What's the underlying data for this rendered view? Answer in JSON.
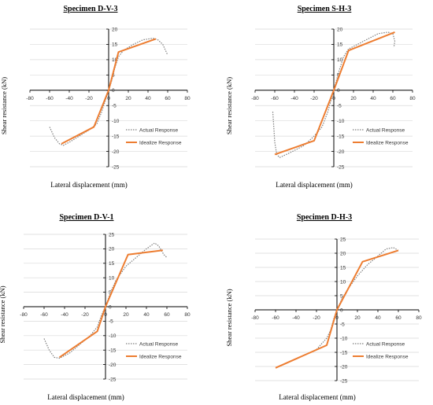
{
  "chart_data": [
    {
      "type": "line",
      "title": "Specimen D-V-3",
      "xlabel": "Lateral displacement (mm)",
      "ylabel": "Shear resistance (kN)",
      "xlim": [
        -80,
        80
      ],
      "ylim": [
        -25,
        20
      ],
      "x_ticks": [
        "-80",
        "-60",
        "-40",
        "-20",
        "0",
        "20",
        "40",
        "60",
        "80"
      ],
      "y_ticks": [
        "20",
        "15",
        "10",
        "5",
        "0",
        "-5",
        "-10",
        "-15",
        "-20",
        "-25"
      ],
      "grid": "horizontal",
      "legend_position": "lower-right",
      "series": [
        {
          "name": "Actual Response",
          "style": "dotted",
          "color": "#7f7f7f",
          "points": [
            [
              -60,
              -12
            ],
            [
              -55,
              -15.5
            ],
            [
              -50,
              -17.5
            ],
            [
              -46,
              -18
            ],
            [
              -40,
              -17
            ],
            [
              -30,
              -15
            ],
            [
              -20,
              -13
            ],
            [
              -12,
              -11
            ],
            [
              -7,
              -7
            ],
            [
              -3,
              -3
            ],
            [
              0,
              0
            ],
            [
              3,
              3
            ],
            [
              6,
              7
            ],
            [
              10,
              11
            ],
            [
              15,
              13
            ],
            [
              25,
              15
            ],
            [
              35,
              16.5
            ],
            [
              45,
              17
            ],
            [
              50,
              16.5
            ],
            [
              55,
              15
            ],
            [
              60,
              11.5
            ]
          ]
        },
        {
          "name": "Idealize Response",
          "style": "solid",
          "color": "#ed7d31",
          "points": [
            [
              -48,
              -17.5
            ],
            [
              -15,
              -12
            ],
            [
              0,
              0
            ],
            [
              10,
              12.5
            ],
            [
              48,
              16.8
            ]
          ]
        }
      ]
    },
    {
      "type": "line",
      "title": "Specimen S-H-3",
      "xlabel": "Lateral displacement (mm)",
      "ylabel": "Shear resistance (kN)",
      "xlim": [
        -80,
        80
      ],
      "ylim": [
        -25,
        20
      ],
      "x_ticks": [
        "-80",
        "-60",
        "-40",
        "-20",
        "0",
        "20",
        "40",
        "60",
        "80"
      ],
      "y_ticks": [
        "20",
        "15",
        "10",
        "5",
        "0",
        "-5",
        "-10",
        "-15",
        "-20",
        "-25"
      ],
      "grid": "horizontal",
      "legend_position": "lower-right",
      "series": [
        {
          "name": "Actual Response",
          "style": "dotted",
          "color": "#7f7f7f",
          "points": [
            [
              -62,
              -7
            ],
            [
              -60,
              -17
            ],
            [
              -58,
              -21
            ],
            [
              -55,
              -22
            ],
            [
              -45,
              -20.5
            ],
            [
              -30,
              -18
            ],
            [
              -20,
              -15
            ],
            [
              -12,
              -12
            ],
            [
              -6,
              -7
            ],
            [
              0,
              0
            ],
            [
              5,
              6
            ],
            [
              10,
              11
            ],
            [
              15,
              13.5
            ],
            [
              30,
              16
            ],
            [
              45,
              18.5
            ],
            [
              55,
              19
            ],
            [
              60,
              18.5
            ],
            [
              62,
              16
            ],
            [
              61,
              14
            ]
          ]
        },
        {
          "name": "Idealize Response",
          "style": "solid",
          "color": "#ed7d31",
          "points": [
            [
              -60,
              -21
            ],
            [
              -20,
              -16.5
            ],
            [
              0,
              0
            ],
            [
              15,
              13
            ],
            [
              62,
              19
            ]
          ]
        }
      ]
    },
    {
      "type": "line",
      "title": "Specimen D-V-1",
      "xlabel": "Lateral displacement (mm)",
      "ylabel": "Shear resistance (kN)",
      "xlim": [
        -80,
        80
      ],
      "ylim": [
        -25,
        25
      ],
      "x_ticks": [
        "-80",
        "-60",
        "-40",
        "-20",
        "0",
        "20",
        "40",
        "60",
        "80"
      ],
      "y_ticks": [
        "25",
        "20",
        "15",
        "10",
        "5",
        "0",
        "-5",
        "-10",
        "-15",
        "-20",
        "-25"
      ],
      "grid": "horizontal",
      "legend_position": "lower-right",
      "series": [
        {
          "name": "Actual Response",
          "style": "dotted",
          "color": "#7f7f7f",
          "points": [
            [
              -60,
              -11
            ],
            [
              -55,
              -15
            ],
            [
              -50,
              -17.5
            ],
            [
              -45,
              -17.8
            ],
            [
              -35,
              -16
            ],
            [
              -25,
              -13
            ],
            [
              -15,
              -10
            ],
            [
              -8,
              -7
            ],
            [
              -4,
              -3
            ],
            [
              0,
              0
            ],
            [
              5,
              5
            ],
            [
              10,
              9
            ],
            [
              20,
              14
            ],
            [
              30,
              17
            ],
            [
              40,
              20
            ],
            [
              48,
              22
            ],
            [
              52,
              21
            ],
            [
              57,
              18
            ],
            [
              60,
              17
            ]
          ]
        },
        {
          "name": "Idealize Response",
          "style": "solid",
          "color": "#ed7d31",
          "points": [
            [
              -45,
              -17.5
            ],
            [
              -8,
              -8.5
            ],
            [
              0,
              0
            ],
            [
              22,
              18
            ],
            [
              56,
              19.5
            ]
          ]
        }
      ]
    },
    {
      "type": "line",
      "title": "Specimen D-H-3",
      "xlabel": "Lateral displacement (mm)",
      "ylabel": "Shear resistance (kN)",
      "xlim": [
        -80,
        80
      ],
      "ylim": [
        -25,
        25
      ],
      "x_ticks": [
        "-80",
        "-60",
        "-40",
        "-20",
        "0",
        "20",
        "40",
        "60",
        "80"
      ],
      "y_ticks": [
        "25",
        "20",
        "15",
        "10",
        "5",
        "0",
        "-5",
        "-10",
        "-15",
        "-20",
        "-25"
      ],
      "grid": "horizontal",
      "legend_position": "lower-right",
      "series": [
        {
          "name": "Actual Response",
          "style": "dotted",
          "color": "#7f7f7f",
          "points": [
            [
              -20,
              -14
            ],
            [
              -15,
              -12
            ],
            [
              -10,
              -10
            ],
            [
              -6,
              -7
            ],
            [
              -3,
              -3
            ],
            [
              0,
              0
            ],
            [
              5,
              4
            ],
            [
              10,
              7
            ],
            [
              20,
              12
            ],
            [
              30,
              16
            ],
            [
              40,
              19
            ],
            [
              48,
              21.5
            ],
            [
              55,
              22
            ],
            [
              60,
              21
            ]
          ]
        },
        {
          "name": "Idealize Response",
          "style": "solid",
          "color": "#ed7d31",
          "points": [
            [
              -60,
              -20.5
            ],
            [
              -10,
              -12.5
            ],
            [
              0,
              0
            ],
            [
              25,
              17
            ],
            [
              60,
              21
            ]
          ]
        }
      ]
    }
  ]
}
